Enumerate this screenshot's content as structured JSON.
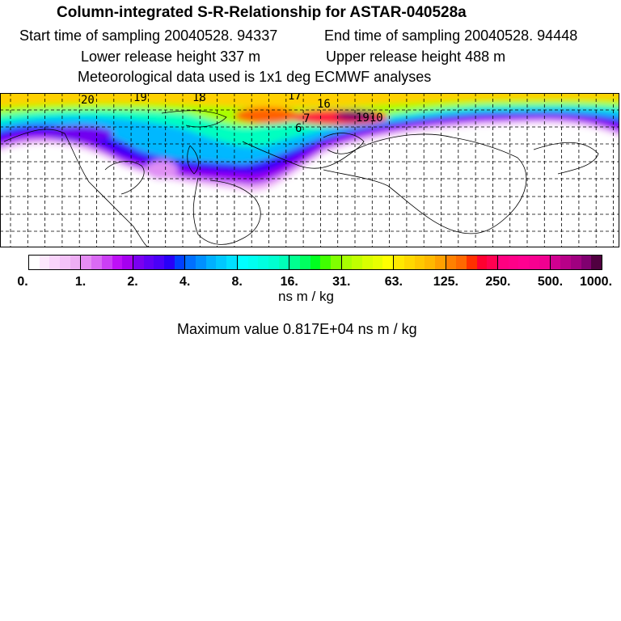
{
  "header": {
    "title": "Column-integrated S-R-Relationship for ASTAR-040528a",
    "start_time": "Start time of sampling 20040528. 94337",
    "end_time": "End time of sampling 20040528. 94448",
    "lower_height": "Lower release height  337 m",
    "upper_height": "Upper release height  488 m",
    "met_data": "Meteorological data used is 1x1 deg ECMWF analyses"
  },
  "map": {
    "trajectory_labels": [
      "20",
      "19",
      "18",
      "17",
      "16",
      "7",
      "6",
      "1910"
    ]
  },
  "colorbar": {
    "tick_labels": [
      "0.",
      "1.",
      "2.",
      "4.",
      "8.",
      "16.",
      "31.",
      "63.",
      "125.",
      "250.",
      "500.",
      "1000."
    ],
    "groups": [
      [
        "#ffffff",
        "#fde8fd",
        "#f9d4fb",
        "#f4c2f8",
        "#eeaef4"
      ],
      [
        "#e58cf3",
        "#da6af4",
        "#cc3ff5",
        "#be10f6",
        "#a600f0"
      ],
      [
        "#7a00f0",
        "#6000f6",
        "#4a00f8",
        "#2800f8",
        "#0040ff"
      ],
      [
        "#0070ff",
        "#0090ff",
        "#00b0ff",
        "#00c8ff",
        "#00e0ff"
      ],
      [
        "#00ffff",
        "#00fff0",
        "#00ffe0",
        "#00ffd0",
        "#00ffb8"
      ],
      [
        "#00ff90",
        "#00ff60",
        "#00ff20",
        "#40ff00",
        "#80ff00"
      ],
      [
        "#a8ff00",
        "#c0ff00",
        "#d8ff00",
        "#e8ff00",
        "#ffff00"
      ],
      [
        "#ffe800",
        "#ffd800",
        "#ffc800",
        "#ffb800",
        "#ffa000"
      ],
      [
        "#ff8000",
        "#ff6800",
        "#ff3000",
        "#ff0030",
        "#ff0050"
      ],
      [
        "#ff0080",
        "#ff0088",
        "#ff0090",
        "#f80090",
        "#f00090"
      ],
      [
        "#d00090",
        "#b80088",
        "#a00080",
        "#800070",
        "#500040"
      ]
    ],
    "units": "ns m / kg"
  },
  "footer": {
    "max_value": "Maximum value  0.817E+04 ns m / kg"
  }
}
